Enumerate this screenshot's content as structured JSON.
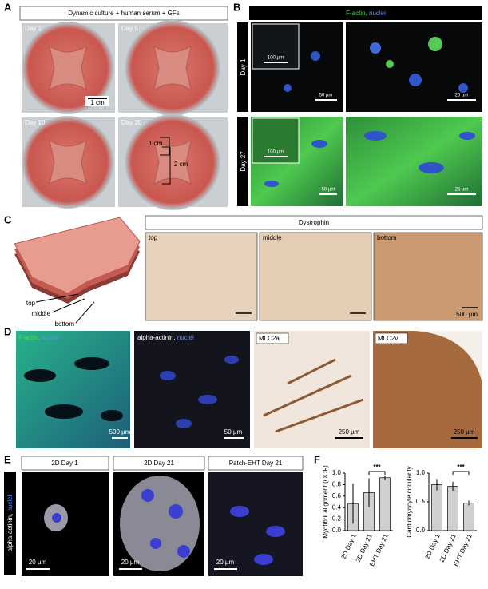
{
  "panel_labels": [
    "A",
    "B",
    "C",
    "D",
    "E",
    "F"
  ],
  "panel_a": {
    "header": "Dynamic culture + human serum + GFs",
    "days": [
      "Day 1",
      "Day 5",
      "Day 10",
      "Day 20"
    ],
    "scale": "1 cm",
    "width_mark": "1 cm",
    "length_mark": "2 cm"
  },
  "panel_b": {
    "header_green": "F-actin,",
    "header_blue": "nuclei",
    "rows": [
      {
        "label": "Day 1",
        "scales": [
          "100 µm",
          "50 µm",
          "25 µm"
        ]
      },
      {
        "label": "Day 27",
        "scales": [
          "100 µm",
          "50 µm",
          "25 µm"
        ]
      }
    ]
  },
  "panel_c": {
    "layers": [
      "top",
      "middle",
      "bottom"
    ],
    "header": "Dystrophin",
    "images": [
      "top",
      "middle",
      "bottom"
    ],
    "scale": "500 µm"
  },
  "panel_d": {
    "f_actin": "F-actin,",
    "nuclei": "nuclei",
    "alpha_actinin": "alpha-actinin,",
    "nuclei_2": "nuclei",
    "mlc2a": "MLC2a",
    "mlc2v": "MLC2v",
    "scales": [
      "500 µm",
      "50 µm",
      "250 µm",
      "250 µm"
    ]
  },
  "panel_e": {
    "stain": "alpha-actinin,",
    "stain_blue": "nuclei",
    "headers": [
      "2D Day 1",
      "2D Day 21",
      "Patch-EHT Day 21"
    ],
    "scales": [
      "20 µm",
      "20 µm",
      "20 µm"
    ]
  },
  "panel_f": {
    "charts": [
      {
        "type": "bar",
        "ylabel": "Myofibril alignment (OOF)",
        "categories": [
          "2D Day 1",
          "2D Day 21",
          "EHT Day 21"
        ],
        "values": [
          0.47,
          0.66,
          0.92
        ],
        "errors": [
          0.35,
          0.25,
          0.04
        ],
        "ylim": [
          0,
          1.0
        ],
        "yticks": [
          {
            "value": 0,
            "label": "0.0"
          },
          0.2,
          0.4,
          0.6,
          0.8,
          {
            "value": 1,
            "label": "1.0"
          }
        ],
        "significance": "***",
        "color": "#d0d0d0"
      },
      {
        "type": "bar",
        "ylabel": "Cardiomyocyte circularity",
        "categories": [
          "2D Day 1",
          "2D Day 21",
          "EHT Day 21"
        ],
        "values": [
          0.8,
          0.77,
          0.48
        ],
        "errors": [
          0.1,
          0.08,
          0.04
        ],
        "ylim": [
          0,
          1.0
        ],
        "yticks": [
          {
            "value": 0,
            "label": "0.0"
          },
          0.5,
          {
            "value": 1,
            "label": "1.0"
          }
        ],
        "significance": "***",
        "color": "#d0d0d0"
      }
    ]
  }
}
